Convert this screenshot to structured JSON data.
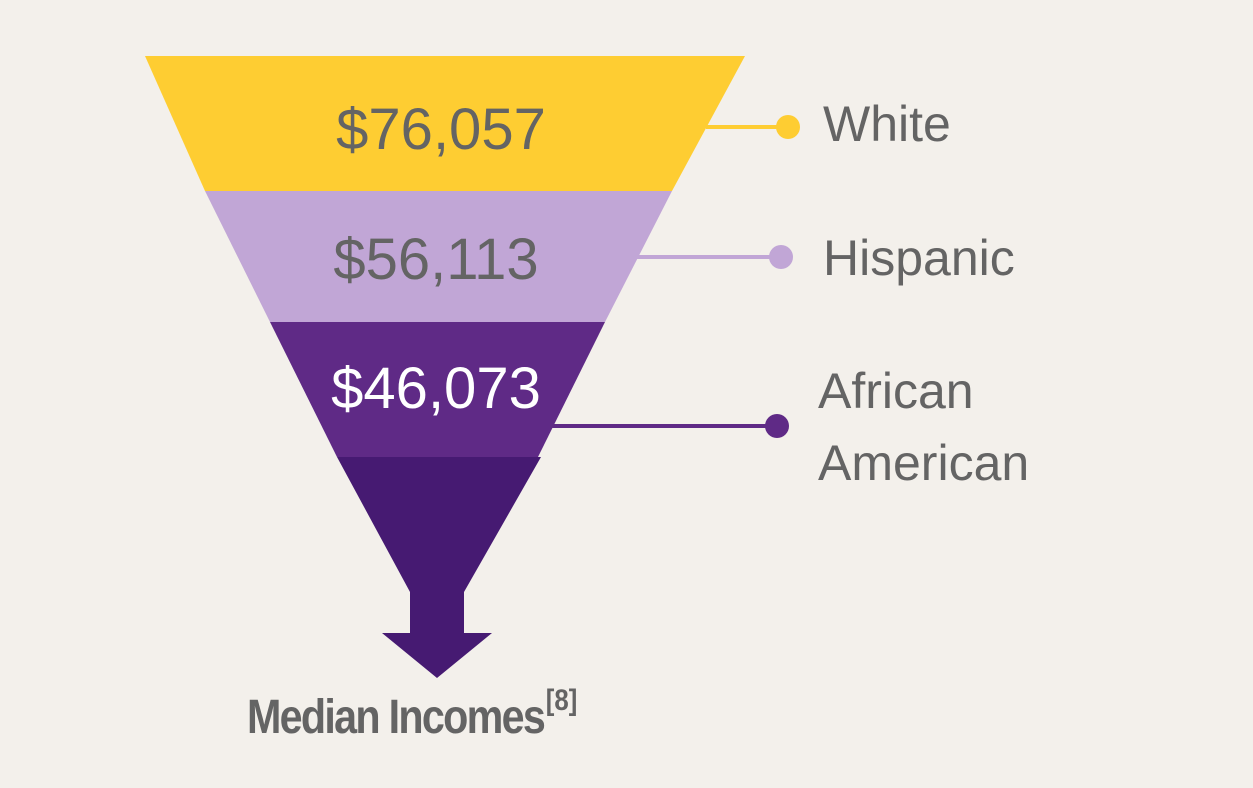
{
  "colors": {
    "background": "#f3f0eb",
    "white_band": "#fecd32",
    "hispanic_band": "#c1a6d6",
    "african_american_band": "#5f2a86",
    "arrow": "#461a72",
    "label_text": "#646464"
  },
  "funnel": {
    "levels": [
      {
        "group": "White",
        "value_label": "$76,057",
        "value": 76057
      },
      {
        "group": "Hispanic",
        "value_label": "$56,113",
        "value": 56113
      },
      {
        "group_line1": "African",
        "group_line2": "American",
        "value_label": "$46,073",
        "value": 46073
      }
    ]
  },
  "footer": {
    "title": "Median Incomes",
    "citation": "[8]"
  }
}
